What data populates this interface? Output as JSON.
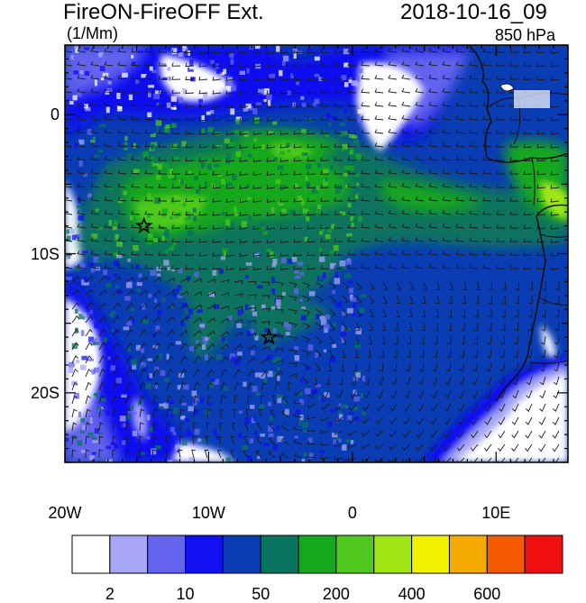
{
  "title": "FireON-FireOFF Ext.",
  "units": "(1/Mm)",
  "timestamp": "2018-10-16_09",
  "level": "850 hPa",
  "axes": {
    "lat_labels": [
      "0",
      "10S",
      "20S"
    ],
    "lon_labels": [
      "20W",
      "10W",
      "0",
      "10E"
    ],
    "lat_values": [
      0,
      -10,
      -20
    ],
    "lon_values": [
      -20,
      -10,
      0,
      10
    ],
    "lon_range": [
      -20,
      15
    ],
    "lat_range": [
      -25,
      5
    ]
  },
  "markers": [
    {
      "name": "star",
      "lon": -14.5,
      "lat": -8
    },
    {
      "name": "star",
      "lon": -5.8,
      "lat": -16
    }
  ],
  "colorbar": {
    "colors": [
      "#ffffff",
      "#a6a6f5",
      "#6464ef",
      "#1010f0",
      "#0a3cb4",
      "#08735e",
      "#14a81e",
      "#50c81e",
      "#a0e614",
      "#f0f000",
      "#f5aa00",
      "#f55a00",
      "#f00f0f"
    ],
    "tick_labels": [
      "2",
      "10",
      "50",
      "200",
      "400",
      "600"
    ]
  }
}
